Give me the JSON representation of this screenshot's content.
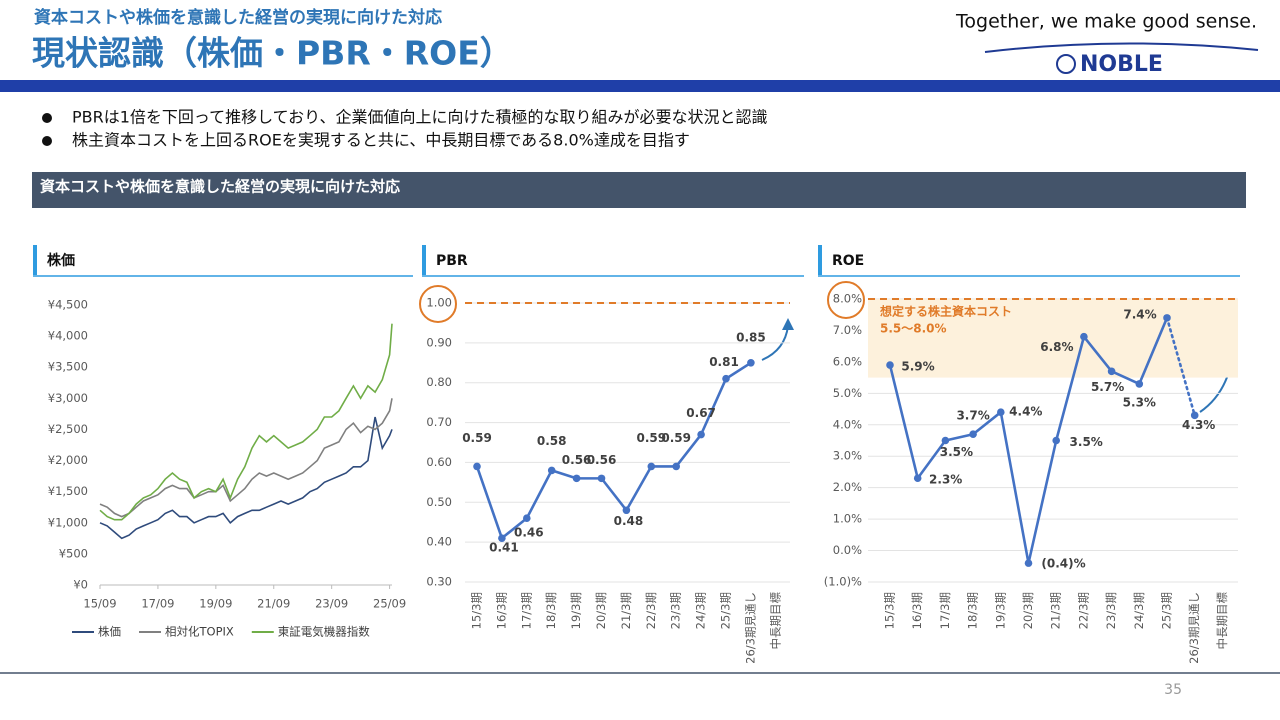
{
  "header": {
    "subtitle": "資本コストや株価を意識した経営の実現に向けた対応",
    "title": "現状認識（株価・PBR・ROE）"
  },
  "logo": {
    "tagline": "Together, we make good sense.",
    "name": "NOBLE"
  },
  "bullets": [
    "PBRは1倍を下回って推移しており、企業価値向上に向けた積極的な取り組みが必要な状況と認識",
    "株主資本コストを上回るROEを実現すると共に、中長期目標である8.0%達成を目指す"
  ],
  "section_title": "資本コストや株価を意識した経営の実現に向けた対応",
  "page_number": "35",
  "chart_data": [
    {
      "type": "line",
      "title": "株価",
      "x": [
        "15/09",
        "15/12",
        "16/03",
        "16/06",
        "16/09",
        "16/12",
        "17/03",
        "17/06",
        "17/09",
        "17/12",
        "18/03",
        "18/06",
        "18/09",
        "18/12",
        "19/03",
        "19/06",
        "19/09",
        "19/12",
        "20/03",
        "20/06",
        "20/09",
        "20/12",
        "21/03",
        "21/06",
        "21/09",
        "21/12",
        "22/03",
        "22/06",
        "22/09",
        "22/12",
        "23/03",
        "23/06",
        "23/09",
        "23/12",
        "24/03",
        "24/06",
        "24/09",
        "24/12",
        "25/03",
        "25/06",
        "25/09",
        "25/10"
      ],
      "xlim": [
        "15/09",
        "25/10"
      ],
      "xticks": [
        "15/09",
        "17/09",
        "19/09",
        "21/09",
        "23/09",
        "25/09"
      ],
      "series": [
        {
          "name": "株価",
          "color": "#2f4b7c",
          "values": [
            1000,
            950,
            850,
            750,
            800,
            900,
            950,
            1000,
            1050,
            1150,
            1200,
            1100,
            1100,
            1000,
            1050,
            1100,
            1100,
            1150,
            1000,
            1100,
            1150,
            1200,
            1200,
            1250,
            1300,
            1350,
            1300,
            1350,
            1400,
            1500,
            1550,
            1650,
            1700,
            1750,
            1800,
            1900,
            1900,
            2000,
            2700,
            2200,
            2400,
            2500
          ]
        },
        {
          "name": "相対化TOPIX",
          "color": "#808080",
          "values": [
            1300,
            1250,
            1150,
            1100,
            1150,
            1250,
            1350,
            1400,
            1450,
            1550,
            1600,
            1550,
            1550,
            1400,
            1450,
            1500,
            1500,
            1600,
            1350,
            1450,
            1550,
            1700,
            1800,
            1750,
            1800,
            1750,
            1700,
            1750,
            1800,
            1900,
            2000,
            2200,
            2250,
            2300,
            2500,
            2600,
            2450,
            2550,
            2500,
            2600,
            2800,
            3000
          ]
        },
        {
          "name": "東証電気機器指数",
          "color": "#70ad47",
          "values": [
            1200,
            1100,
            1050,
            1050,
            1150,
            1300,
            1400,
            1450,
            1550,
            1700,
            1800,
            1700,
            1650,
            1400,
            1500,
            1550,
            1500,
            1700,
            1400,
            1700,
            1900,
            2200,
            2400,
            2300,
            2400,
            2300,
            2200,
            2250,
            2300,
            2400,
            2500,
            2700,
            2700,
            2800,
            3000,
            3200,
            3000,
            3200,
            3100,
            3300,
            3700,
            4200
          ]
        }
      ],
      "ylim": [
        0,
        4500
      ],
      "yticks": [
        {
          "value": 0,
          "label": "¥0"
        },
        {
          "value": 500,
          "label": "¥500"
        },
        {
          "value": 1000,
          "label": "¥1,000"
        },
        {
          "value": 1500,
          "label": "¥1,500"
        },
        {
          "value": 2000,
          "label": "¥2,000"
        },
        {
          "value": 2500,
          "label": "¥2,500"
        },
        {
          "value": 3000,
          "label": "¥3,000"
        },
        {
          "value": 3500,
          "label": "¥3,500"
        },
        {
          "value": 4000,
          "label": "¥4,000"
        },
        {
          "value": 4500,
          "label": "¥4,500"
        }
      ],
      "legend": "bottom"
    },
    {
      "type": "line",
      "title": "PBR",
      "color": "#4472c4",
      "categories": [
        "15/3期",
        "16/3期",
        "17/3期",
        "18/3期",
        "19/3期",
        "20/3期",
        "21/3期",
        "22/3期",
        "23/3期",
        "24/3期",
        "25/3期",
        "26/3期見通し",
        "中長期目標"
      ],
      "values": [
        0.59,
        0.41,
        0.46,
        0.58,
        0.56,
        0.56,
        0.48,
        0.59,
        0.59,
        0.67,
        0.81,
        0.85,
        null
      ],
      "ylim": [
        0.3,
        1.0
      ],
      "yticks": [
        {
          "value": 0.3,
          "label": "0.30"
        },
        {
          "value": 0.4,
          "label": "0.40"
        },
        {
          "value": 0.5,
          "label": "0.50"
        },
        {
          "value": 0.6,
          "label": "0.60"
        },
        {
          "value": 0.7,
          "label": "0.70"
        },
        {
          "value": 0.8,
          "label": "0.80"
        },
        {
          "value": 0.9,
          "label": "0.90"
        },
        {
          "value": 1.0,
          "label": "1.00"
        }
      ],
      "target_line": 1.0
    },
    {
      "type": "line",
      "title": "ROE",
      "color": "#4472c4",
      "categories": [
        "15/3期",
        "16/3期",
        "17/3期",
        "18/3期",
        "19/3期",
        "20/3期",
        "21/3期",
        "22/3期",
        "23/3期",
        "24/3期",
        "25/3期",
        "26/3期見通し",
        "中長期目標"
      ],
      "values": [
        5.9,
        2.3,
        3.5,
        3.7,
        4.4,
        -0.4,
        3.5,
        6.8,
        5.7,
        5.3,
        7.4,
        4.3,
        null
      ],
      "value_labels": [
        "5.9%",
        "2.3%",
        "3.5%",
        "3.7%",
        "4.4%",
        "(0.4)%",
        "3.5%",
        "6.8%",
        "5.7%",
        "5.3%",
        "7.4%",
        "4.3%",
        null
      ],
      "ylim": [
        -1,
        8
      ],
      "yticks": [
        {
          "value": -1,
          "label": "(1.0)%"
        },
        {
          "value": 0,
          "label": "0.0%"
        },
        {
          "value": 1,
          "label": "1.0%"
        },
        {
          "value": 2,
          "label": "2.0%"
        },
        {
          "value": 3,
          "label": "3.0%"
        },
        {
          "value": 4,
          "label": "4.0%"
        },
        {
          "value": 5,
          "label": "5.0%"
        },
        {
          "value": 6,
          "label": "6.0%"
        },
        {
          "value": 7,
          "label": "7.0%"
        },
        {
          "value": 8,
          "label": "8.0%"
        }
      ],
      "band": {
        "range": [
          5.5,
          8.0
        ],
        "label": "想定する株主資本コスト",
        "range_label": "5.5～8.0%"
      }
    }
  ]
}
